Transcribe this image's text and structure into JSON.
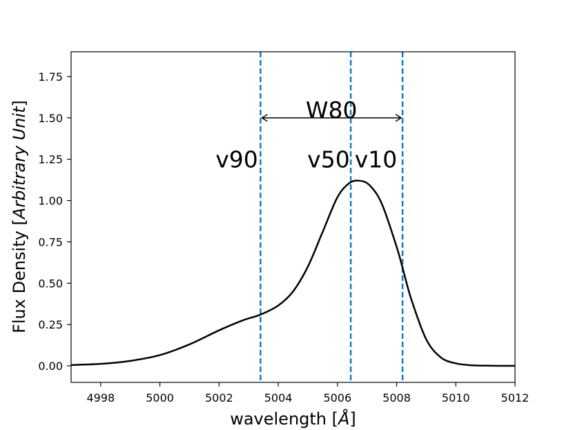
{
  "chart_data": {
    "type": "line",
    "xlabel_prefix": "wavelength [",
    "xlabel_unit": "Å",
    "xlabel_suffix": "]",
    "ylabel_prefix": "Flux Density [",
    "ylabel_unit": "Arbitrary Unit",
    "ylabel_suffix": "]",
    "xlim": [
      4997,
      5012
    ],
    "ylim": [
      -0.1,
      1.9
    ],
    "xticks": [
      4998,
      5000,
      5002,
      5004,
      5006,
      5008,
      5010,
      5012
    ],
    "xtick_labels": [
      "4998",
      "5000",
      "5002",
      "5004",
      "5006",
      "5008",
      "5010",
      "5012"
    ],
    "yticks": [
      0.0,
      0.25,
      0.5,
      0.75,
      1.0,
      1.25,
      1.5,
      1.75
    ],
    "ytick_labels": [
      "0.00",
      "0.25",
      "0.50",
      "0.75",
      "1.00",
      "1.25",
      "1.50",
      "1.75"
    ],
    "series": [
      {
        "name": "emission line profile",
        "color": "#000000",
        "x": [
          4997,
          4998,
          4999,
          5000,
          5001,
          5002,
          5002.8,
          5003.4,
          5004,
          5004.5,
          5005,
          5005.5,
          5006,
          5006.4,
          5006.75,
          5007.1,
          5007.5,
          5008,
          5008.25,
          5008.5,
          5009,
          5009.5,
          5010,
          5010.5,
          5011,
          5012
        ],
        "y": [
          0.005,
          0.012,
          0.03,
          0.065,
          0.13,
          0.215,
          0.275,
          0.31,
          0.365,
          0.45,
          0.6,
          0.81,
          1.02,
          1.105,
          1.12,
          1.09,
          0.98,
          0.72,
          0.56,
          0.4,
          0.16,
          0.05,
          0.015,
          0.004,
          0.001,
          0.0
        ]
      }
    ],
    "vlines": [
      {
        "name": "v90",
        "x": 5003.4,
        "color": "#1f77b4",
        "style": "dashed"
      },
      {
        "name": "v50",
        "x": 5006.45,
        "color": "#1f77b4",
        "style": "dashed"
      },
      {
        "name": "v10",
        "x": 5008.2,
        "color": "#1f77b4",
        "style": "dashed"
      }
    ],
    "annotations": [
      {
        "text": "v90",
        "x": 5002.6,
        "y": 1.25
      },
      {
        "text": "v50",
        "x": 5005.7,
        "y": 1.25
      },
      {
        "text": "v10",
        "x": 5007.3,
        "y": 1.25
      },
      {
        "text": "W80",
        "x": 5005.8,
        "y": 1.55
      }
    ],
    "arrow": {
      "label": "W80",
      "x_start": 5003.4,
      "x_end": 5008.2,
      "y": 1.5,
      "style": "double-headed"
    }
  }
}
